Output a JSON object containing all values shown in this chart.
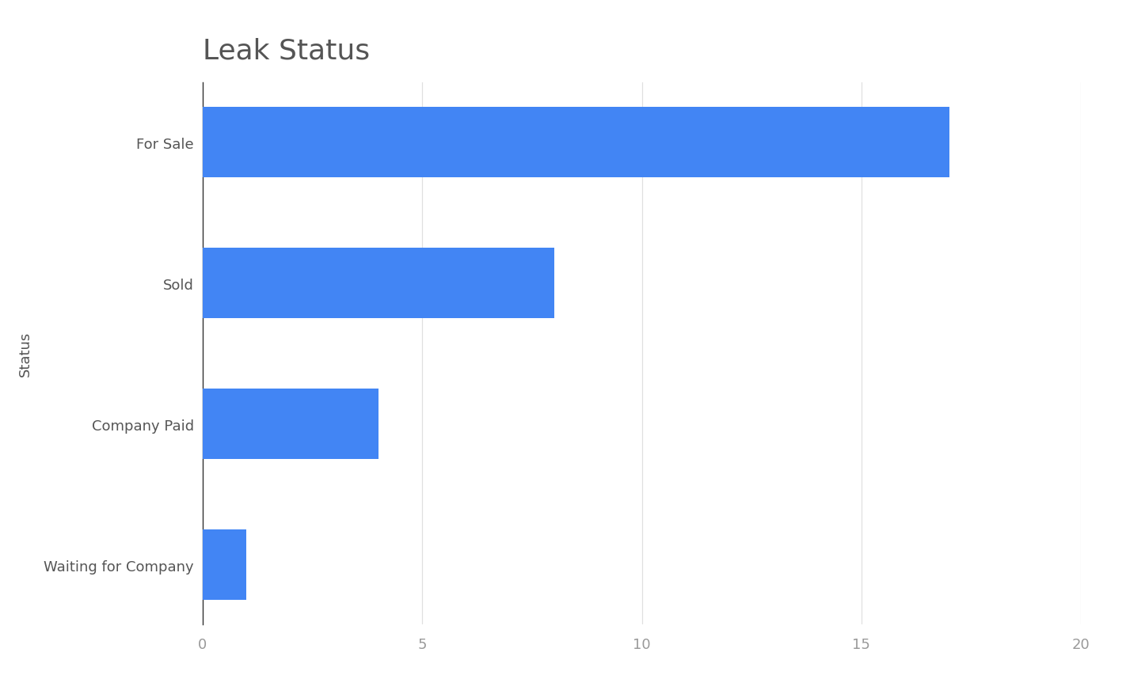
{
  "title": "Leak Status",
  "categories": [
    "For Sale",
    "Sold",
    "Company Paid",
    "Waiting for Company"
  ],
  "values": [
    17,
    8,
    4,
    1
  ],
  "bar_color": "#4285F4",
  "ylabel": "Status",
  "xlabel": "",
  "xlim": [
    0,
    20
  ],
  "xticks": [
    0,
    5,
    10,
    15,
    20
  ],
  "background_color": "#ffffff",
  "title_fontsize": 26,
  "axis_label_fontsize": 13,
  "tick_fontsize": 13,
  "tick_color": "#999999",
  "label_color": "#555555",
  "grid_color": "#e0e0e0",
  "spine_color": "#333333",
  "bar_height": 0.5
}
